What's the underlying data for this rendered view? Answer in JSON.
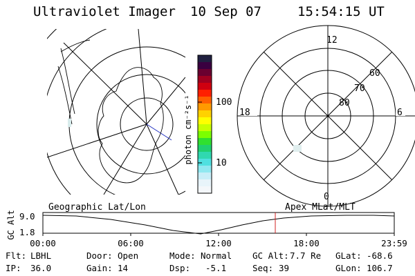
{
  "header": {
    "title": "Ultraviolet Imager",
    "date": "10 Sep 07",
    "time": "15:54:15 UT"
  },
  "colorbar": {
    "unit_label": "photon cm⁻²s⁻¹",
    "ticks": [
      "100",
      "10"
    ],
    "colors": [
      "#202040",
      "#3a0040",
      "#6a0030",
      "#a00020",
      "#d00010",
      "#ff2000",
      "#ff6000",
      "#ff9a00",
      "#ffd200",
      "#ffff00",
      "#c8ff00",
      "#7cff00",
      "#30e030",
      "#20d070",
      "#30d8b0",
      "#50e0e0",
      "#90e8f0",
      "#c8eef8",
      "#e8f4fa",
      "#f4f7fa"
    ]
  },
  "geo_map": {
    "label": "Geographic Lat/Lon"
  },
  "polar_map": {
    "label": "Apex MLat/MLT",
    "mlt_labels": {
      "top": "12",
      "bottom": "0",
      "left": "18",
      "right": "6"
    },
    "lat_labels": [
      "60",
      "70",
      "80"
    ]
  },
  "altitude_plot": {
    "ylabel": "GC Alt",
    "yticks": [
      "9.0",
      "1.8"
    ],
    "xticks": [
      "00:00",
      "06:00",
      "12:00",
      "18:00",
      "23:59"
    ]
  },
  "footer": {
    "filter_label": "Flt:",
    "filter_value": "LBHL",
    "ip_label": "IP:",
    "ip_value": "36.0",
    "door_label": "Door:",
    "door_value": "Open",
    "gain_label": "Gain:",
    "gain_value": "14",
    "mode_label": "Mode:",
    "mode_value": "Normal",
    "dsp_label": "Dsp:",
    "dsp_value": "-5.1",
    "gcalt_label": "GC Alt:",
    "gcalt_value": "7.7 Re",
    "seq_label": "Seq:",
    "seq_value": "39",
    "glat_label": "GLat:",
    "glat_value": "-68.6",
    "glon_label": "GLon:",
    "glon_value": "106.7"
  }
}
